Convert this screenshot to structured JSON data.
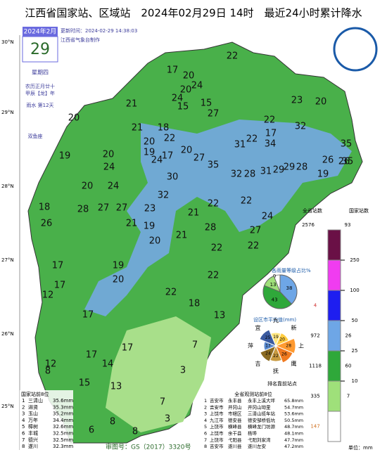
{
  "header": {
    "title": "江西省国家站、区域站　2024年02月29日 14时　最近24小时累计降水",
    "update": "更新时间：2024-02-29 14:38:03",
    "maker": "江西省气象台制作"
  },
  "date_box": {
    "month": "2024年2月",
    "day": "29",
    "weekday": "星期四",
    "lunar": "农历正月廿十",
    "year": "甲辰【龙】年",
    "term": "雨水 第12天",
    "zodiac": "双鱼座"
  },
  "lat_labels": [
    "30°N",
    "29°N",
    "28°N",
    "27°N",
    "26°N",
    "25°N"
  ],
  "map": {
    "values": [
      22,
      17,
      20,
      24,
      20,
      24,
      21,
      15,
      15,
      20,
      23,
      27,
      22,
      20,
      18,
      17,
      32,
      21,
      22,
      22,
      20,
      19,
      17,
      31,
      34,
      35,
      19,
      20,
      20,
      27,
      35,
      35,
      24,
      24,
      29,
      28,
      26,
      26,
      31,
      29,
      32,
      28,
      30,
      19,
      20,
      24,
      32,
      27,
      27,
      28,
      22,
      21,
      22,
      24,
      18,
      26,
      23,
      21,
      19,
      28,
      27,
      20,
      21,
      22,
      22,
      17,
      19,
      20,
      17,
      22,
      22,
      12,
      18,
      13,
      17,
      7,
      17,
      17,
      14,
      12,
      3,
      8,
      13,
      15,
      7,
      8,
      3,
      6,
      8
    ]
  },
  "legend": {
    "total_title": "全省站数",
    "total": "2576",
    "nation_title": "国家站数",
    "nation": "93",
    "thresholds": [
      250,
      100,
      50,
      25,
      10
    ],
    "total_counts": [
      "4",
      "972",
      "1118",
      "335",
      "147"
    ],
    "nation_counts": [
      "26",
      "60",
      "7"
    ],
    "unit": "单位：mm"
  },
  "pie_levels": {
    "title": "各雨量等级占比%",
    "values": [
      0,
      38,
      43,
      13
    ]
  },
  "pie_cities": {
    "title": "设区市平均值(mm)",
    "cities": [
      "九",
      "新",
      "上",
      "鹰",
      "抚",
      "吉",
      "萍",
      "宜"
    ],
    "values": [
      19,
      20,
      28,
      26,
      22,
      24,
      17,
      25
    ]
  },
  "rank_note": "排名靠前站点",
  "nation_top": {
    "title": "国家站前8位",
    "rows": [
      [
        "1",
        "三清山",
        "35.6mm"
      ],
      [
        "2",
        "进贤",
        "35.3mm"
      ],
      [
        "3",
        "玉山",
        "35.2mm"
      ],
      [
        "4",
        "万年",
        "34.4mm"
      ],
      [
        "5",
        "樟树",
        "32.6mm"
      ],
      [
        "6",
        "丰城",
        "32.5mm"
      ],
      [
        "7",
        "德兴",
        "32.5mm"
      ],
      [
        "8",
        "遂川",
        "32.3mm"
      ]
    ]
  },
  "all_top": {
    "title": "全省观测站前8位",
    "rows": [
      [
        "1",
        "吉安市",
        "永丰县",
        "永丰上溪大坪",
        "65.8mm"
      ],
      [
        "2",
        "吉安市",
        "井冈山",
        "井冈山坳里",
        "54.7mm"
      ],
      [
        "3",
        "上饶市",
        "市辖区",
        "三清山缆车站",
        "53.6mm"
      ],
      [
        "4",
        "九江市",
        "德安县",
        "德安邹桥低坑",
        "50.5mm"
      ],
      [
        "5",
        "上饶市",
        "横峰县",
        "横峰龙门坊源",
        "48.7mm"
      ],
      [
        "6",
        "上饶市",
        "余干县",
        "杨埠",
        "48.1mm"
      ],
      [
        "7",
        "上饶市",
        "弋阳县",
        "弋阳刘家湾",
        "47.7mm"
      ],
      [
        "8",
        "吉安市",
        "遂川县",
        "遂川左安",
        "47.2mm"
      ]
    ]
  },
  "footer": "审图号：GS（2017）3320号"
}
